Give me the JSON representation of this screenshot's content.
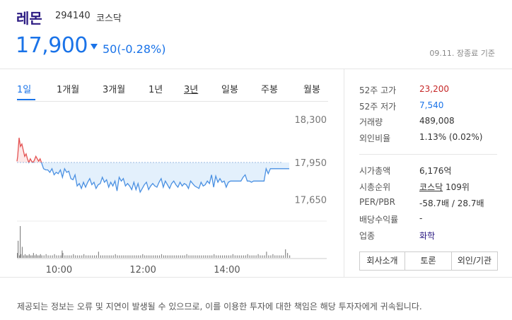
{
  "stock": {
    "name": "레몬",
    "code": "294140",
    "market": "코스닥",
    "price": "17,900",
    "change": "50(-0.28%)",
    "as_of": "09.11. 장종료 기준"
  },
  "tabs": [
    {
      "label": "1일",
      "active": true
    },
    {
      "label": "1개월"
    },
    {
      "label": "3개월"
    },
    {
      "label": "1년"
    },
    {
      "label": "3년"
    },
    {
      "label": "일봉"
    },
    {
      "label": "주봉"
    },
    {
      "label": "월봉"
    }
  ],
  "info": [
    {
      "label": "52주 고가",
      "value": "23,200",
      "color": "#c62828"
    },
    {
      "label": "52주 저가",
      "value": "7,540",
      "color": "#1a73e8"
    },
    {
      "label": "거래량",
      "value": "489,008"
    },
    {
      "label": "외인비율",
      "value": "1.13% (0.02%)"
    },
    {
      "label": "시가총액",
      "value": "6,176억"
    },
    {
      "label": "시총순위",
      "value_link": "코스닥",
      "value_suffix": " 109위"
    },
    {
      "label": "PER/PBR",
      "value": "-58.7배 / 28.7배"
    },
    {
      "label": "배당수익률",
      "value": "-"
    },
    {
      "label": "업종",
      "value": "화학",
      "color": "#2b1a82"
    }
  ],
  "buttons": [
    "회사소개",
    "토론",
    "외인/기관"
  ],
  "disclaimer": "제공되는 정보는 오류 및 지연이 발생될 수 있으므로, 이를 이용한 투자에 대한 책임은 해당 투자자에게 귀속됩니다.",
  "chart_data": {
    "type": "line",
    "title": "",
    "prev_close": 17950,
    "ylim": [
      17550,
      18350
    ],
    "y_ticks": [
      18300,
      17950,
      17650
    ],
    "x_range": [
      540,
      930
    ],
    "x_ticks": [
      {
        "x": 600,
        "label": "10:00"
      },
      {
        "x": 720,
        "label": "12:00"
      },
      {
        "x": 840,
        "label": "14:00"
      }
    ],
    "up_color": "#e45252",
    "down_color": "#4a90e2",
    "series": [
      {
        "x": [
          540,
          541,
          543,
          545,
          547,
          549,
          551,
          553,
          555,
          557,
          559,
          561,
          563,
          565,
          567,
          569,
          571,
          573,
          575,
          578,
          581,
          584,
          587,
          590,
          593,
          596,
          599,
          602,
          605,
          608,
          611,
          614,
          617,
          620,
          623,
          626,
          629,
          632,
          635,
          638,
          641,
          644,
          647,
          650,
          653,
          656,
          659,
          662,
          665,
          668,
          671,
          674,
          677,
          680,
          683,
          686,
          689,
          692,
          695,
          698,
          701,
          704,
          707,
          710,
          713,
          716,
          719,
          722,
          725,
          728,
          731,
          734,
          737,
          740,
          743,
          746,
          749,
          752,
          755,
          758,
          761,
          764,
          767,
          770,
          773,
          776,
          779,
          782,
          785,
          788,
          791,
          794,
          797,
          800,
          803,
          806,
          809,
          812,
          815,
          818,
          821,
          824,
          827,
          830,
          833,
          836,
          839,
          842,
          845,
          848,
          851,
          854,
          857,
          860,
          863,
          866,
          869,
          872,
          875,
          878,
          881,
          884,
          887,
          890,
          893,
          896,
          899,
          902,
          905,
          908,
          911,
          914,
          917,
          920,
          923,
          926,
          929
        ],
        "values": [
          17960,
          18000,
          18150,
          18080,
          18100,
          18050,
          18000,
          18020,
          17980,
          17950,
          17980,
          17960,
          17950,
          17970,
          18000,
          17980,
          17960,
          17980,
          17950,
          17900,
          17890,
          17890,
          17870,
          17900,
          17850,
          17870,
          17860,
          17890,
          17830,
          17900,
          17870,
          17880,
          17820,
          17810,
          17850,
          17760,
          17780,
          17740,
          17790,
          17750,
          17790,
          17820,
          17770,
          17790,
          17740,
          17770,
          17780,
          17830,
          17790,
          17810,
          17750,
          17790,
          17760,
          17800,
          17720,
          17830,
          17800,
          17820,
          17760,
          17780,
          17760,
          17730,
          17790,
          17730,
          17780,
          17710,
          17740,
          17770,
          17790,
          17730,
          17760,
          17780,
          17760,
          17750,
          17790,
          17820,
          17750,
          17800,
          17770,
          17740,
          17780,
          17800,
          17770,
          17750,
          17790,
          17760,
          17780,
          17770,
          17740,
          17800,
          17780,
          17760,
          17750,
          17740,
          17790,
          17760,
          17770,
          17800,
          17780,
          17850,
          17750,
          17840,
          17790,
          17820,
          17790,
          17800,
          17750,
          17790,
          17800,
          17800,
          17800,
          17800,
          17800,
          17800,
          17830,
          17850,
          17800,
          17800,
          17790,
          17800,
          17800,
          17800,
          17800,
          17800,
          17800,
          17900,
          17860,
          17900,
          17900,
          17900,
          17900,
          17900,
          17900,
          17900,
          17900,
          17900,
          17900
        ],
        "volume": [
          4,
          5,
          2,
          3,
          2,
          2,
          3,
          2,
          2,
          3,
          2,
          2,
          4,
          2,
          3,
          2,
          2,
          3,
          2,
          2,
          3,
          2,
          2,
          2,
          3,
          2,
          2,
          2,
          4,
          2,
          2,
          2,
          2,
          3,
          2,
          2,
          2,
          2,
          3,
          2,
          2,
          2,
          2,
          2,
          2,
          3,
          2,
          2,
          2,
          2,
          2,
          2,
          2,
          3,
          2,
          2,
          2,
          2,
          2,
          2,
          2,
          2,
          2,
          2,
          2,
          2,
          3,
          2,
          2,
          2,
          2,
          2,
          2,
          2,
          2,
          3,
          2,
          2,
          2,
          2,
          2,
          2,
          2,
          2,
          2,
          2,
          2,
          3,
          2,
          2,
          2,
          2,
          2,
          2,
          2,
          2,
          2,
          2,
          2,
          2,
          3,
          2,
          2,
          2,
          2,
          2,
          2,
          2,
          2,
          3,
          2,
          2,
          2,
          2,
          2,
          2,
          3,
          2,
          2,
          2,
          2,
          3,
          2,
          2,
          2,
          4,
          2,
          2,
          3,
          2,
          2,
          2,
          2,
          2,
          2,
          4,
          2
        ]
      }
    ],
    "volume_peaks": [
      {
        "x": 544,
        "v": 26
      },
      {
        "x": 541,
        "v": 14
      },
      {
        "x": 547,
        "v": 9
      },
      {
        "x": 604,
        "v": 6
      },
      {
        "x": 656,
        "v": 5
      },
      {
        "x": 896,
        "v": 5
      },
      {
        "x": 923,
        "v": 7
      }
    ]
  }
}
